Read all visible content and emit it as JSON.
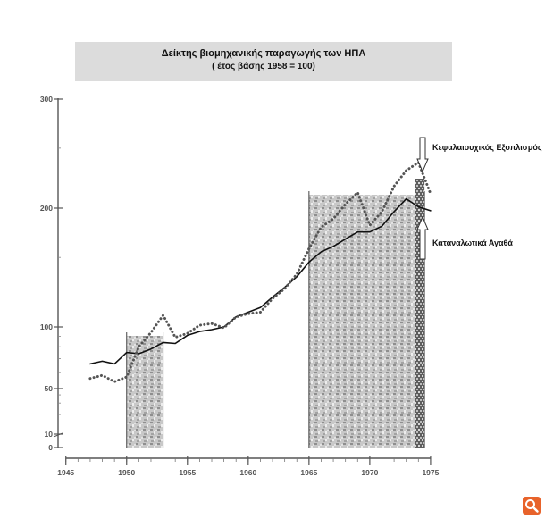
{
  "chart_data": {
    "type": "line",
    "title": "Δείκτης  βιομηχανικής παραγωγής των ΗΠΑ",
    "subtitle": "( έτος βάσης  1958 = 100)",
    "xlabel": "",
    "ylabel": "",
    "x_ticks": [
      1945,
      1950,
      1955,
      1960,
      1965,
      1970,
      1975
    ],
    "x_tick_labels": [
      "1945",
      "1950",
      "1955",
      "1960",
      "1965",
      "1970",
      "1975"
    ],
    "x_minor_step": 1,
    "y_ticks": [
      {
        "value": 0,
        "label": "0"
      },
      {
        "value": 10,
        "label": "10"
      },
      {
        "value": 50,
        "label": "50"
      },
      {
        "value": 100,
        "label": "100"
      },
      {
        "value": 200,
        "label": "200"
      },
      {
        "value": 300,
        "label": "300"
      }
    ],
    "xlim": [
      1944.8,
      1975.3
    ],
    "shaded_periods": [
      [
        1950,
        1953
      ],
      [
        1965,
        1974.5
      ]
    ],
    "series": [
      {
        "name": "Καταναλωτικά Αγαθά",
        "style": "solid",
        "color": "#111111",
        "x": [
          1947,
          1948,
          1949,
          1950,
          1951,
          1952,
          1953,
          1954,
          1955,
          1956,
          1957,
          1958,
          1959,
          1960,
          1961,
          1962,
          1963,
          1964,
          1965,
          1966,
          1967,
          1968,
          1969,
          1970,
          1971,
          1972,
          1973,
          1974,
          1975
        ],
        "values": [
          66,
          68,
          66,
          75,
          74,
          78,
          84,
          83,
          91,
          95,
          97,
          100,
          106,
          109,
          112,
          119,
          126,
          134,
          146,
          155,
          160,
          167,
          174,
          174,
          180,
          196,
          207,
          201,
          197
        ]
      },
      {
        "name": "Κεφαλαιουχικός Εξοπλισμός",
        "style": "dotted",
        "color": "#555555",
        "x": [
          1947,
          1948,
          1949,
          1950,
          1951,
          1952,
          1953,
          1954,
          1955,
          1956,
          1957,
          1958,
          1959,
          1960,
          1961,
          1962,
          1963,
          1964,
          1965,
          1966,
          1967,
          1968,
          1969,
          1970,
          1971,
          1972,
          1973,
          1974,
          1975
        ],
        "values": [
          56,
          58,
          54,
          57,
          80,
          94,
          107,
          89,
          93,
          101,
          102,
          99,
          106,
          108,
          109,
          118,
          125,
          136,
          158,
          179,
          188,
          203,
          212,
          181,
          196,
          217,
          230,
          237,
          211
        ]
      }
    ],
    "annotations": [
      {
        "text": "Κεφαλαιουχικός Εξοπλισμός",
        "arrow": "down"
      },
      {
        "text": "Καταναλωτικά Αγαθά",
        "arrow": "up"
      }
    ]
  },
  "colors": {
    "background": "#ffffff",
    "title_box": "#dcdcdc",
    "axis": "#555555",
    "shade": "#b8b8b8",
    "shade_dark": "#7a7a7a",
    "logo": "#e8632b"
  },
  "logo": {
    "icon": "magnifier-icon"
  }
}
